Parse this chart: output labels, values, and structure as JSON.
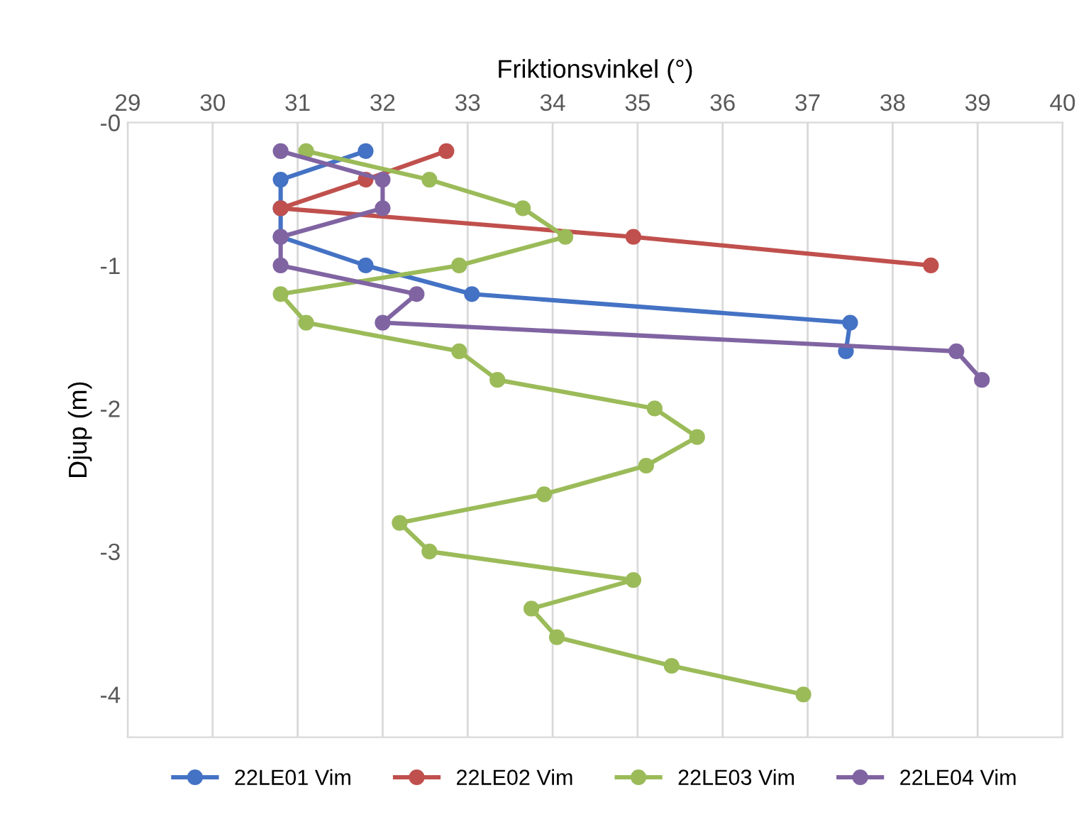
{
  "chart_data": {
    "type": "line",
    "xlabel": "Friktionsvinkel (°)",
    "ylabel": "Djup (m)",
    "xlim": [
      29,
      40
    ],
    "xticks": [
      29,
      30,
      31,
      32,
      33,
      34,
      35,
      36,
      37,
      38,
      39,
      40
    ],
    "ylim": [
      -4.3,
      0
    ],
    "yticks": [
      {
        "value": 0,
        "label": "-0"
      },
      {
        "value": -1,
        "label": "-1"
      },
      {
        "value": -2,
        "label": "-2"
      },
      {
        "value": -3,
        "label": "-3"
      },
      {
        "value": -4,
        "label": "-4"
      }
    ],
    "grid": "x",
    "legend": "bottom",
    "marker": "circle",
    "line_style": "solid",
    "series": [
      {
        "name": "22LE01 Vim",
        "color": "#4472c4",
        "x": [
          31.8,
          30.8,
          30.8,
          30.8,
          31.8,
          33.05,
          37.5,
          37.45
        ],
        "values": [
          -0.2,
          -0.4,
          -0.6,
          -0.8,
          -1.0,
          -1.2,
          -1.4,
          -1.6
        ]
      },
      {
        "name": "22LE02 Vim",
        "color": "#c0504d",
        "x": [
          32.75,
          31.8,
          30.8,
          34.95,
          38.45
        ],
        "values": [
          -0.2,
          -0.4,
          -0.6,
          -0.8,
          -1.0
        ]
      },
      {
        "name": "22LE03 Vim",
        "color": "#9bbb59",
        "x": [
          31.1,
          32.55,
          33.65,
          34.15,
          32.9,
          30.8,
          31.1,
          32.9,
          33.35,
          35.2,
          35.7,
          35.1,
          33.9,
          32.2,
          32.55,
          34.95,
          33.75,
          34.05,
          35.4,
          36.95
        ],
        "values": [
          -0.2,
          -0.4,
          -0.6,
          -0.8,
          -1.0,
          -1.2,
          -1.4,
          -1.6,
          -1.8,
          -2.0,
          -2.2,
          -2.4,
          -2.6,
          -2.8,
          -3.0,
          -3.2,
          -3.4,
          -3.6,
          -3.8,
          -4.0
        ]
      },
      {
        "name": "22LE04 Vim",
        "color": "#8064a2",
        "x": [
          30.8,
          32.0,
          32.0,
          30.8,
          30.8,
          32.4,
          32.0,
          38.75,
          39.05
        ],
        "values": [
          -0.2,
          -0.4,
          -0.6,
          -0.8,
          -1.0,
          -1.2,
          -1.4,
          -1.6,
          -1.8
        ]
      }
    ]
  }
}
